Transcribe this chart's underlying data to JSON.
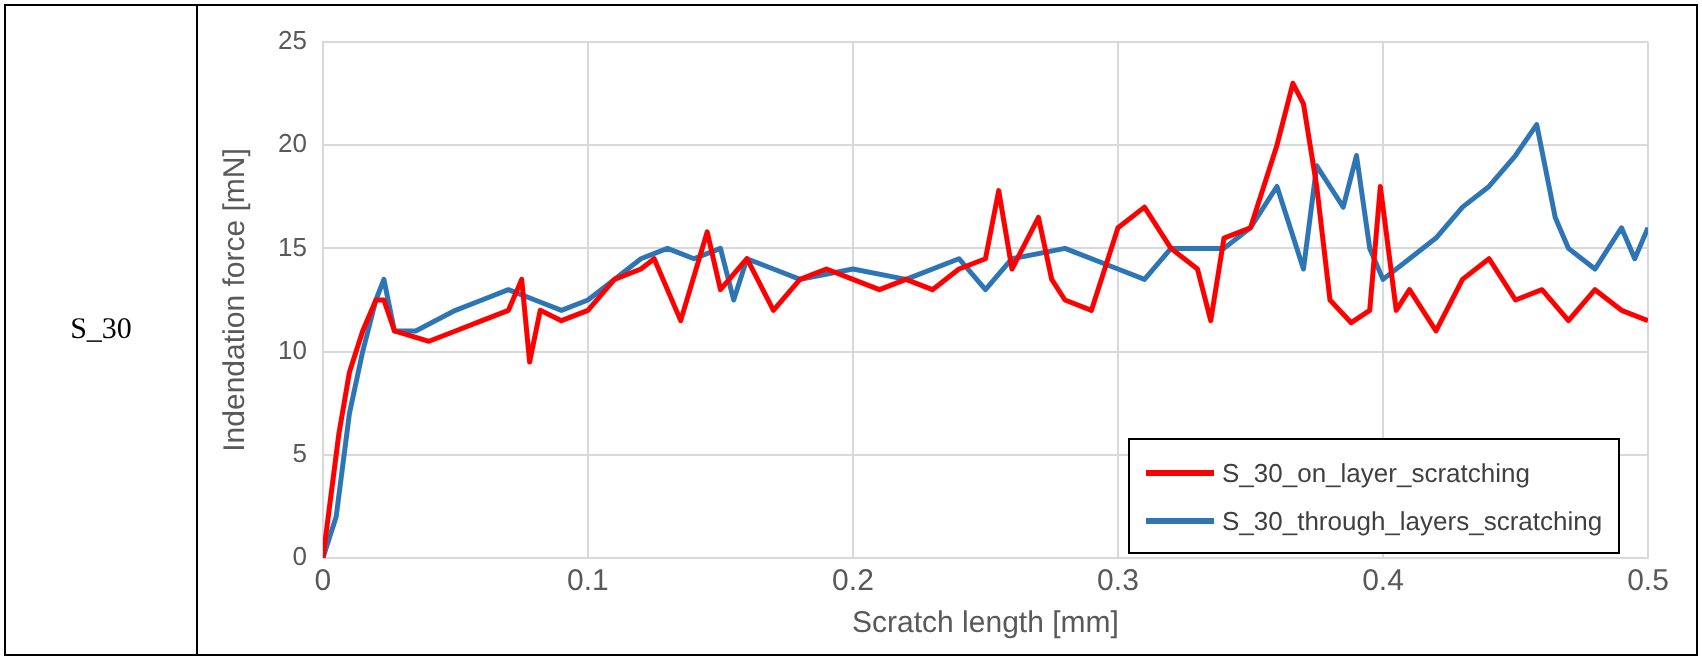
{
  "chart_data": {
    "type": "line",
    "xlabel": "Scratch length [mm]",
    "ylabel": "Indendation force [mN]",
    "annotations": [
      "S_30"
    ],
    "xlim": [
      0,
      0.5
    ],
    "xticks": [
      0,
      0.1,
      0.2,
      0.3,
      0.4,
      0.5
    ],
    "ylim": [
      0,
      25
    ],
    "yticks": [
      0,
      5,
      10,
      15,
      20,
      25
    ],
    "grid": true,
    "legend": "bottom right",
    "marker": "none",
    "line_style": "solid",
    "series": [
      {
        "name": "S_30_on_layer_scratching",
        "color": "#ff0000",
        "x": [
          0,
          0.003,
          0.006,
          0.01,
          0.015,
          0.02,
          0.023,
          0.027,
          0.04,
          0.05,
          0.06,
          0.07,
          0.075,
          0.078,
          0.082,
          0.09,
          0.1,
          0.11,
          0.12,
          0.125,
          0.135,
          0.145,
          0.15,
          0.16,
          0.17,
          0.18,
          0.19,
          0.2,
          0.21,
          0.22,
          0.23,
          0.24,
          0.25,
          0.255,
          0.26,
          0.27,
          0.275,
          0.28,
          0.29,
          0.3,
          0.31,
          0.32,
          0.33,
          0.335,
          0.34,
          0.35,
          0.36,
          0.366,
          0.37,
          0.375,
          0.38,
          0.388,
          0.395,
          0.399,
          0.405,
          0.41,
          0.42,
          0.43,
          0.44,
          0.45,
          0.46,
          0.47,
          0.48,
          0.49,
          0.5
        ],
        "values": [
          0,
          3,
          6,
          9,
          11,
          12.5,
          12.5,
          11,
          10.5,
          11,
          11.5,
          12,
          13.5,
          9.5,
          12,
          11.5,
          12,
          13.5,
          14,
          14.5,
          11.5,
          15.8,
          13,
          14.5,
          12,
          13.5,
          14,
          13.5,
          13,
          13.5,
          13,
          14,
          14.5,
          17.8,
          14,
          16.5,
          13.5,
          12.5,
          12,
          16,
          17,
          15,
          14,
          11.5,
          15.5,
          16,
          20,
          23,
          22,
          18,
          12.5,
          11.4,
          12,
          18,
          12,
          13,
          11,
          13.5,
          14.5,
          12.5,
          13,
          11.5,
          13,
          12,
          11.5
        ]
      },
      {
        "name": "S_30_through_layers_scratching",
        "color": "#2e75b6",
        "x": [
          0,
          0.005,
          0.01,
          0.015,
          0.02,
          0.023,
          0.027,
          0.035,
          0.05,
          0.06,
          0.07,
          0.08,
          0.09,
          0.1,
          0.11,
          0.12,
          0.13,
          0.14,
          0.15,
          0.155,
          0.16,
          0.17,
          0.18,
          0.2,
          0.22,
          0.24,
          0.25,
          0.26,
          0.28,
          0.3,
          0.31,
          0.32,
          0.34,
          0.35,
          0.36,
          0.365,
          0.37,
          0.375,
          0.38,
          0.385,
          0.39,
          0.395,
          0.4,
          0.41,
          0.42,
          0.43,
          0.44,
          0.45,
          0.458,
          0.465,
          0.47,
          0.48,
          0.49,
          0.495,
          0.5
        ],
        "values": [
          0,
          2,
          7,
          10,
          12.5,
          13.5,
          11,
          11,
          12,
          12.5,
          13,
          12.5,
          12,
          12.5,
          13.5,
          14.5,
          15,
          14.5,
          15,
          12.5,
          14.5,
          14,
          13.5,
          14,
          13.5,
          14.5,
          13,
          14.5,
          15,
          14,
          13.5,
          15,
          15,
          16,
          18,
          16,
          14,
          19,
          18,
          17,
          19.5,
          15,
          13.5,
          14.5,
          15.5,
          17,
          18,
          19.5,
          21,
          16.5,
          15,
          14,
          16,
          14.5,
          16
        ]
      }
    ]
  }
}
